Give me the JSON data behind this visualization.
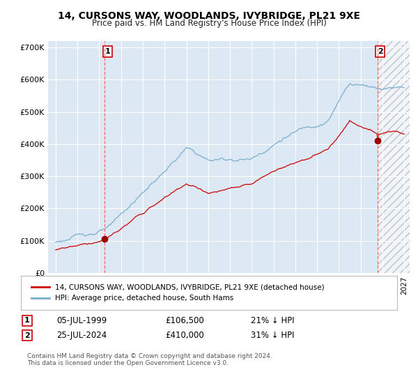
{
  "title": "14, CURSONS WAY, WOODLANDS, IVYBRIDGE, PL21 9XE",
  "subtitle": "Price paid vs. HM Land Registry's House Price Index (HPI)",
  "legend_line1": "14, CURSONS WAY, WOODLANDS, IVYBRIDGE, PL21 9XE (detached house)",
  "legend_line2": "HPI: Average price, detached house, South Hams",
  "transaction1_label": "1",
  "transaction1_date": "05-JUL-1999",
  "transaction1_price": "£106,500",
  "transaction1_hpi": "21% ↓ HPI",
  "transaction2_label": "2",
  "transaction2_date": "25-JUL-2024",
  "transaction2_price": "£410,000",
  "transaction2_hpi": "31% ↓ HPI",
  "footer": "Contains HM Land Registry data © Crown copyright and database right 2024.\nThis data is licensed under the Open Government Licence v3.0.",
  "plot_bg_color": "#dce9f5",
  "grid_color": "#ffffff",
  "red_line_color": "#cc0000",
  "blue_line_color": "#7aadcc",
  "marker_color": "#990000",
  "dashed_line_color": "#ff6666",
  "ylim": [
    0,
    720000
  ],
  "yticks": [
    0,
    100000,
    200000,
    300000,
    400000,
    500000,
    600000,
    700000
  ],
  "ytick_labels": [
    "£0",
    "£100K",
    "£200K",
    "£300K",
    "£400K",
    "£500K",
    "£600K",
    "£700K"
  ],
  "transaction1_year": 1999.51,
  "transaction1_value": 106500,
  "transaction2_year": 2024.55,
  "transaction2_value": 410000
}
